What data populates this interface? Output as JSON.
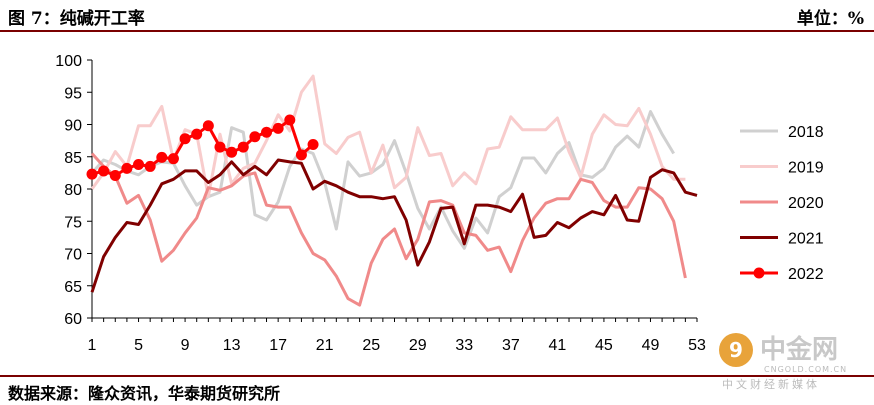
{
  "header": {
    "title": "图 7：纯碱开工率",
    "unit": "单位：%"
  },
  "source": "数据来源：隆众资讯，华泰期货研究所",
  "watermark": {
    "name": "中金网",
    "domain": "CNGOLD.COM.CN",
    "tagline": "中文财经新媒体"
  },
  "chart_data": {
    "type": "line",
    "xlim": [
      1,
      53
    ],
    "ylim": [
      60,
      100
    ],
    "x_ticks": [
      1,
      5,
      9,
      13,
      17,
      21,
      25,
      29,
      33,
      37,
      41,
      45,
      49,
      53
    ],
    "y_ticks": [
      60,
      65,
      70,
      75,
      80,
      85,
      90,
      95,
      100
    ],
    "legend_position": "right",
    "series": [
      {
        "name": "2018",
        "color": "#d0d0d0",
        "markers": false,
        "values": [
          82.5,
          84.5,
          83.8,
          82.8,
          82.2,
          83.5,
          84.2,
          84,
          80.5,
          77.5,
          78.8,
          79.5,
          89.5,
          88.8,
          76,
          75.2,
          78,
          83.5,
          86.2,
          85.5,
          81,
          73.8,
          84.2,
          82,
          82.5,
          83.8,
          87.5,
          82.5,
          77,
          73.8,
          77.2,
          73.5,
          70.8,
          75.5,
          73.2,
          78.8,
          80.2,
          84.8,
          84.8,
          82.5,
          85.5,
          87.2,
          82.2,
          81.8,
          83.2,
          86.5,
          88.2,
          86.5,
          92,
          88.5,
          85.5
        ]
      },
      {
        "name": "2019",
        "color": "#f8cccc",
        "markers": false,
        "values": [
          80,
          82.5,
          85.8,
          83.5,
          89.8,
          89.8,
          92.8,
          84.5,
          89.2,
          88.5,
          78.8,
          88.5,
          80.8,
          83.2,
          84,
          87.5,
          91.5,
          89,
          95,
          97.5,
          87,
          85.5,
          88,
          88.8,
          82.5,
          86.8,
          80.2,
          81.8,
          89.5,
          85.2,
          85.5,
          80.5,
          82.5,
          80.8,
          86.2,
          86.5,
          91.2,
          89.2,
          89.2,
          89.2,
          91,
          85.8,
          81.8,
          88.5,
          91.5,
          90,
          89.8,
          92.5,
          88.5,
          83.5,
          81.5,
          81.5
        ]
      },
      {
        "name": "2020",
        "color": "#f08a8a",
        "markers": false,
        "values": [
          85.5,
          83.5,
          82,
          77.8,
          79,
          75.2,
          68.8,
          70.5,
          73.2,
          75.5,
          80.2,
          79.8,
          80.5,
          82,
          82.5,
          77.5,
          77.2,
          77.2,
          73.2,
          70,
          69,
          66.5,
          63,
          62,
          68.5,
          72.2,
          73.8,
          69.2,
          72.2,
          78,
          78.2,
          77.5,
          73.2,
          72.8,
          70.5,
          71,
          67.2,
          72,
          75.5,
          77.8,
          78.5,
          78.5,
          81.5,
          81,
          78.2,
          77.2,
          77.2,
          80.2,
          80,
          78.5,
          75,
          66.2
        ]
      },
      {
        "name": "2021",
        "color": "#800000",
        "markers": false,
        "values": [
          64,
          69.5,
          72.5,
          74.8,
          74.5,
          77.5,
          80.8,
          81.5,
          82.8,
          82.8,
          81,
          82.2,
          84.2,
          82.2,
          83.5,
          82.2,
          84.5,
          84.2,
          84,
          80,
          81.2,
          80.5,
          79.5,
          78.8,
          78.8,
          78.5,
          78.8,
          75.2,
          68.2,
          71.8,
          77,
          77.2,
          71.5,
          77.5,
          77.5,
          77.2,
          76.5,
          79.2,
          72.5,
          72.8,
          74.8,
          74,
          75.5,
          76.5,
          76,
          79,
          75.2,
          75,
          81.8,
          83,
          82.5,
          79.5,
          79
        ]
      },
      {
        "name": "2022",
        "color": "#ff0000",
        "markers": true,
        "values": [
          82.3,
          82.8,
          82.1,
          83.2,
          83.8,
          83.5,
          84.9,
          84.7,
          87.8,
          88.5,
          89.8,
          86.5,
          85.7,
          86.5,
          88.1,
          88.8,
          89.4,
          90.7,
          85.3,
          86.9
        ]
      }
    ]
  }
}
